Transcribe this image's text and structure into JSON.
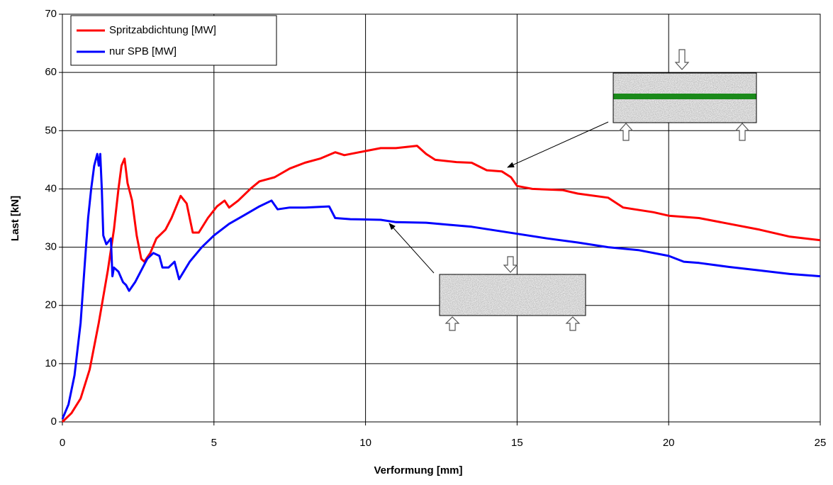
{
  "chart_data": {
    "type": "line",
    "x_label": "Verformung [mm]",
    "y_label": "Last [kN]",
    "xlim": [
      0,
      25
    ],
    "xticks": [
      0,
      5,
      10,
      15,
      20,
      25
    ],
    "ylim": [
      0,
      70
    ],
    "yticks": [
      0,
      10,
      20,
      30,
      40,
      50,
      60,
      70
    ],
    "grid": true,
    "legend": "upper-left",
    "series": [
      {
        "name": "Spritzabdichtung [MW]",
        "color": "#ff0000",
        "x": [
          0,
          0.3,
          0.6,
          0.9,
          1.2,
          1.5,
          1.7,
          1.85,
          1.95,
          2.05,
          2.15,
          2.3,
          2.45,
          2.6,
          2.7,
          2.9,
          3.1,
          3.4,
          3.6,
          3.9,
          4.1,
          4.3,
          4.5,
          4.8,
          5.1,
          5.35,
          5.5,
          5.8,
          6.2,
          6.5,
          7,
          7.5,
          8,
          8.5,
          9,
          9.3,
          10,
          10.5,
          11,
          11.7,
          12,
          12.3,
          13,
          13.5,
          14,
          14.5,
          14.8,
          15,
          15.5,
          16.5,
          17,
          18,
          18.5,
          19.5,
          20,
          21,
          22,
          23,
          24,
          25
        ],
        "values": [
          0,
          1.5,
          4,
          9,
          17,
          26,
          33,
          40,
          44,
          45.2,
          41,
          38,
          32,
          28,
          27.5,
          29,
          31.5,
          33,
          35,
          38.8,
          37.5,
          32.5,
          32.5,
          35,
          37,
          38,
          36.8,
          38,
          40,
          41.3,
          42,
          43.5,
          44.5,
          45.2,
          46.3,
          45.8,
          46.5,
          47,
          47,
          47.4,
          46,
          45,
          44.6,
          44.5,
          43.2,
          43,
          42,
          40.5,
          40,
          39.8,
          39.2,
          38.5,
          36.8,
          36,
          35.4,
          35,
          34,
          33,
          31.8,
          31.2
        ]
      },
      {
        "name": "nur SPB [MW]",
        "color": "#0000ff",
        "x": [
          0,
          0.2,
          0.4,
          0.6,
          0.75,
          0.85,
          0.95,
          1.05,
          1.15,
          1.2,
          1.25,
          1.3,
          1.35,
          1.45,
          1.6,
          1.65,
          1.7,
          1.85,
          2,
          2.1,
          2.2,
          2.4,
          2.6,
          2.8,
          3,
          3.2,
          3.3,
          3.5,
          3.7,
          3.85,
          4.2,
          4.6,
          5,
          5.5,
          6,
          6.5,
          6.9,
          7.1,
          7.5,
          8,
          8.8,
          9,
          9.5,
          10.5,
          11,
          12,
          13.5,
          15,
          16,
          17,
          18,
          19,
          20,
          20.5,
          21,
          22,
          23,
          24,
          25
        ],
        "values": [
          0.5,
          3,
          8,
          17,
          28,
          35,
          40,
          44,
          46,
          44,
          46,
          40,
          32,
          30.5,
          31.5,
          25,
          26.5,
          25.8,
          24,
          23.5,
          22.5,
          24,
          26,
          28,
          29,
          28.5,
          26.5,
          26.5,
          27.5,
          24.5,
          27.5,
          30,
          32,
          34,
          35.5,
          37,
          38,
          36.5,
          36.8,
          36.8,
          37,
          35,
          34.8,
          34.7,
          34.3,
          34.2,
          33.5,
          32.3,
          31.5,
          30.8,
          30,
          29.5,
          28.5,
          27.5,
          27.3,
          26.6,
          26,
          25.4,
          25
        ]
      }
    ]
  }
}
